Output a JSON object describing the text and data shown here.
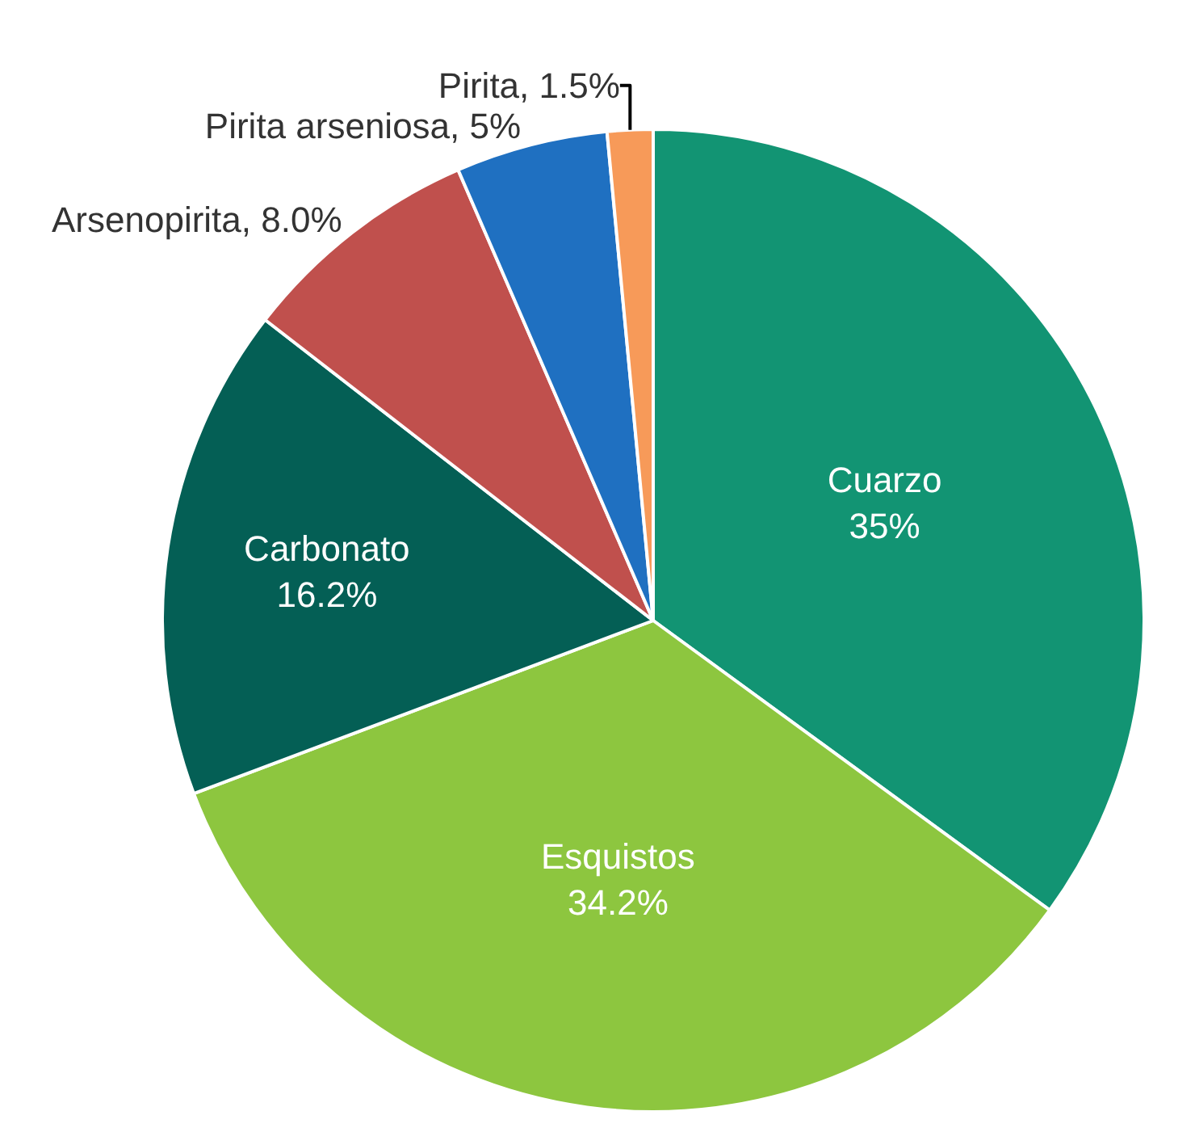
{
  "chart_data": {
    "type": "pie",
    "categories": [
      "Cuarzo",
      "Esquistos",
      "Carbonato",
      "Arsenopirita",
      "Pirita arseniosa",
      "Pirita"
    ],
    "values": [
      35,
      34.2,
      16.2,
      8.0,
      5,
      1.5
    ],
    "value_labels": [
      "35%",
      "34.2%",
      "16.2%",
      "8.0%",
      "5%",
      "1.5%"
    ],
    "colors": [
      "#129473",
      "#8dc63f",
      "#045f55",
      "#c0504d",
      "#1f70c1",
      "#f79a59"
    ],
    "legend": false
  }
}
